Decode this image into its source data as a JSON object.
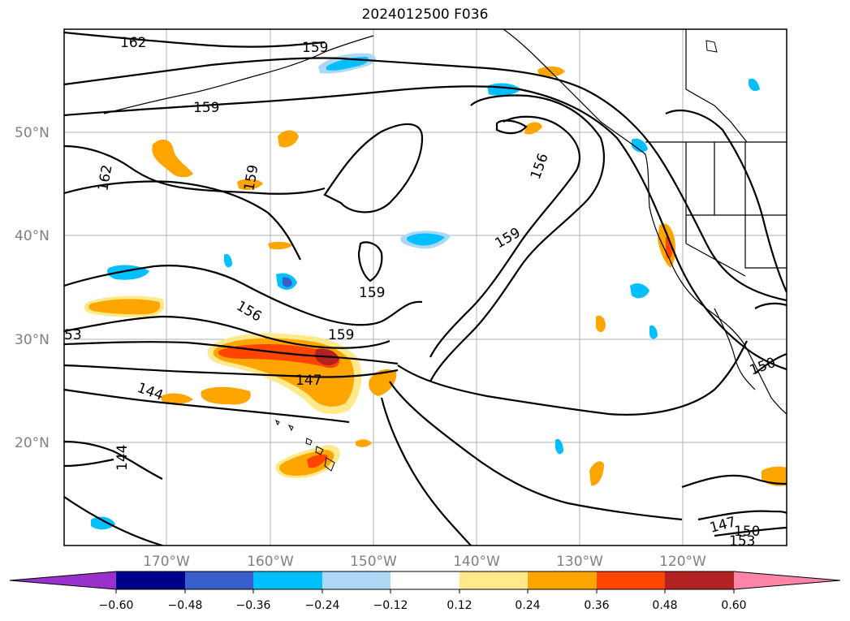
{
  "title": "2024012500 F036",
  "latitude_labels": [
    "50°N",
    "40°N",
    "30°N",
    "20°N"
  ],
  "longitude_labels": [
    "170°W",
    "160°W",
    "150°W",
    "140°W",
    "130°W",
    "120°W"
  ],
  "contour_labels": [
    "162",
    "159",
    "159",
    "162",
    "159",
    "156",
    "159",
    "159",
    "156",
    "159",
    "53",
    "147",
    "144",
    "144",
    "150",
    "147",
    "150",
    "153"
  ],
  "colorbar": {
    "ticks": [
      "−0.60",
      "−0.48",
      "−0.36",
      "−0.24",
      "−0.12",
      "0.12",
      "0.24",
      "0.36",
      "0.48",
      "0.60"
    ],
    "colors": [
      "#9932cc",
      "#00008b",
      "#3a5fcd",
      "#00bfff",
      "#add8f5",
      "#ffffff",
      "#ffe98a",
      "#ffa500",
      "#ff4500",
      "#b22222",
      "#ff85a8"
    ]
  }
}
